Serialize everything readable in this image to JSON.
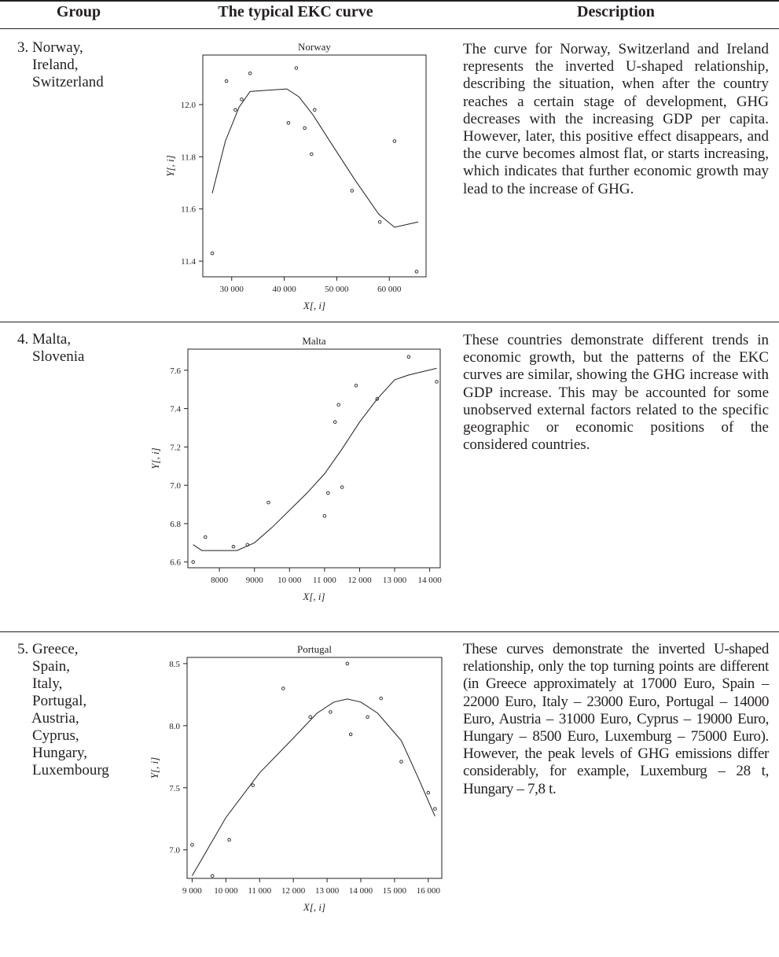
{
  "header": {
    "group_label": "Group",
    "curve_label": "The typical EKC curve",
    "description_label": "Description"
  },
  "rows": [
    {
      "group": "3. Norway,\n    Ireland,\n    Switzerland",
      "description": "The curve for Norway, Switzerland and Ireland represents the inverted U-shaped relationship, describing the situation, when after the country reaches a certain stage of development, GHG decreases with the increasing GDP per capita. How­ever, later, this positive effect disappears, and the curve becomes almost flat, or starts increasing, which indicates that further economic growth may lead to the increase of GHG."
    },
    {
      "group": "4. Malta,\n    Slovenia",
      "description": "These countries demonstrate different trends in economic growth, but the patterns of the EKC curves are similar, showing the GHG increase with GDP increase. This may be accounted for some unobserved external factors related to the specific geographic or economic positions of the considered countries."
    },
    {
      "group": "5. Greece,\n    Spain,\n    Italy,\n    Portugal,\n    Austria,\n    Cyprus,\n    Hungary,\n    Luxembourg",
      "description": "These curves demonstrate the inverted U-shaped relationship, only the top turn­ing points are different (in Greece approx­imately at 17000 Euro, Spain – 22000 Euro, Italy – 23000 Euro, Portugal – 14000 Euro, Austria – 31000 Euro, Cyprus – 19000 Euro, Hungary – 8500 Euro, Luxemburg – 75000 Euro). However, the peak levels of GHG emissions differ considerably, for ex­ample, Luxemburg – 28 t, Hungary – 7,8 t."
    }
  ],
  "chart_data": [
    {
      "type": "scatter",
      "title": "Norway",
      "xlabel": "X[, i]",
      "ylabel": "Y[, i]",
      "xlim": [
        24500,
        67000
      ],
      "ylim": [
        11.34,
        12.19
      ],
      "xticks": [
        30000,
        40000,
        50000,
        60000
      ],
      "xtick_labels": [
        "30 000",
        "40 000",
        "50 000",
        "60 000"
      ],
      "yticks": [
        11.4,
        11.6,
        11.8,
        12.0
      ],
      "ytick_labels": [
        "11.4",
        "11.6",
        "11.8",
        "12.0"
      ],
      "points": [
        [
          26300,
          11.43
        ],
        [
          29000,
          12.09
        ],
        [
          30700,
          11.98
        ],
        [
          31900,
          12.02
        ],
        [
          33500,
          12.12
        ],
        [
          40800,
          11.93
        ],
        [
          42300,
          12.14
        ],
        [
          43900,
          11.91
        ],
        [
          45200,
          11.81
        ],
        [
          45800,
          11.98
        ],
        [
          52900,
          11.67
        ],
        [
          58200,
          11.55
        ],
        [
          61000,
          11.86
        ],
        [
          65200,
          11.36
        ]
      ],
      "curve": [
        [
          26300,
          11.66
        ],
        [
          28800,
          11.86
        ],
        [
          31400,
          11.99
        ],
        [
          33500,
          12.05
        ],
        [
          36800,
          12.055
        ],
        [
          40500,
          12.06
        ],
        [
          42800,
          12.03
        ],
        [
          45500,
          11.96
        ],
        [
          49000,
          11.85
        ],
        [
          53500,
          11.71
        ],
        [
          58000,
          11.58
        ],
        [
          61000,
          11.53
        ],
        [
          65500,
          11.55
        ]
      ]
    },
    {
      "type": "scatter",
      "title": "Malta",
      "xlabel": "X[, i]",
      "ylabel": "Y[, i]",
      "xlim": [
        7100,
        14300
      ],
      "ylim": [
        6.57,
        7.71
      ],
      "xticks": [
        8000,
        9000,
        10000,
        11000,
        12000,
        13000,
        14000
      ],
      "xtick_labels": [
        "8000",
        "9000",
        "10 000",
        "11 000",
        "12 000",
        "13 000",
        "14 000"
      ],
      "yticks": [
        6.6,
        6.8,
        7.0,
        7.2,
        7.4,
        7.6
      ],
      "ytick_labels": [
        "6.6",
        "6.8",
        "7.0",
        "7.2",
        "7.4",
        "7.6"
      ],
      "points": [
        [
          7250,
          6.6
        ],
        [
          7600,
          6.73
        ],
        [
          8400,
          6.68
        ],
        [
          8800,
          6.69
        ],
        [
          9400,
          6.91
        ],
        [
          11000,
          6.84
        ],
        [
          11100,
          6.96
        ],
        [
          11300,
          7.33
        ],
        [
          11400,
          7.42
        ],
        [
          11500,
          6.99
        ],
        [
          11900,
          7.52
        ],
        [
          12500,
          7.45
        ],
        [
          13400,
          7.67
        ],
        [
          14200,
          7.54
        ]
      ],
      "curve": [
        [
          7250,
          6.69
        ],
        [
          7500,
          6.66
        ],
        [
          8500,
          6.66
        ],
        [
          9000,
          6.7
        ],
        [
          9500,
          6.78
        ],
        [
          10500,
          6.96
        ],
        [
          11000,
          7.06
        ],
        [
          11500,
          7.19
        ],
        [
          12000,
          7.33
        ],
        [
          12500,
          7.45
        ],
        [
          13000,
          7.55
        ],
        [
          13400,
          7.575
        ],
        [
          14200,
          7.61
        ]
      ]
    },
    {
      "type": "scatter",
      "title": "Portugal",
      "xlabel": "X[, i]",
      "ylabel": "Y[, i]",
      "xlim": [
        8850,
        16400
      ],
      "ylim": [
        6.77,
        8.55
      ],
      "xticks": [
        9000,
        10000,
        11000,
        12000,
        13000,
        14000,
        15000,
        16000
      ],
      "xtick_labels": [
        "9 000",
        "10 000",
        "11 000",
        "12 000",
        "13 000",
        "14 000",
        "15 000",
        "16 000"
      ],
      "yticks": [
        7.0,
        7.5,
        8.0,
        8.5
      ],
      "ytick_labels": [
        "7.0",
        "7.5",
        "8.0",
        "8.5"
      ],
      "points": [
        [
          9000,
          7.04
        ],
        [
          9600,
          6.79
        ],
        [
          10100,
          7.08
        ],
        [
          10800,
          7.52
        ],
        [
          11700,
          8.3
        ],
        [
          12500,
          8.07
        ],
        [
          13100,
          8.11
        ],
        [
          13600,
          8.5
        ],
        [
          13700,
          7.93
        ],
        [
          14200,
          8.07
        ],
        [
          14600,
          8.22
        ],
        [
          15200,
          7.71
        ],
        [
          16000,
          7.46
        ],
        [
          16200,
          7.33
        ]
      ],
      "curve": [
        [
          9000,
          6.79
        ],
        [
          10000,
          7.26
        ],
        [
          11000,
          7.62
        ],
        [
          12000,
          7.9
        ],
        [
          12700,
          8.1
        ],
        [
          13200,
          8.19
        ],
        [
          13600,
          8.215
        ],
        [
          14000,
          8.19
        ],
        [
          14500,
          8.1
        ],
        [
          15200,
          7.88
        ],
        [
          15700,
          7.58
        ],
        [
          16200,
          7.27
        ]
      ]
    }
  ]
}
